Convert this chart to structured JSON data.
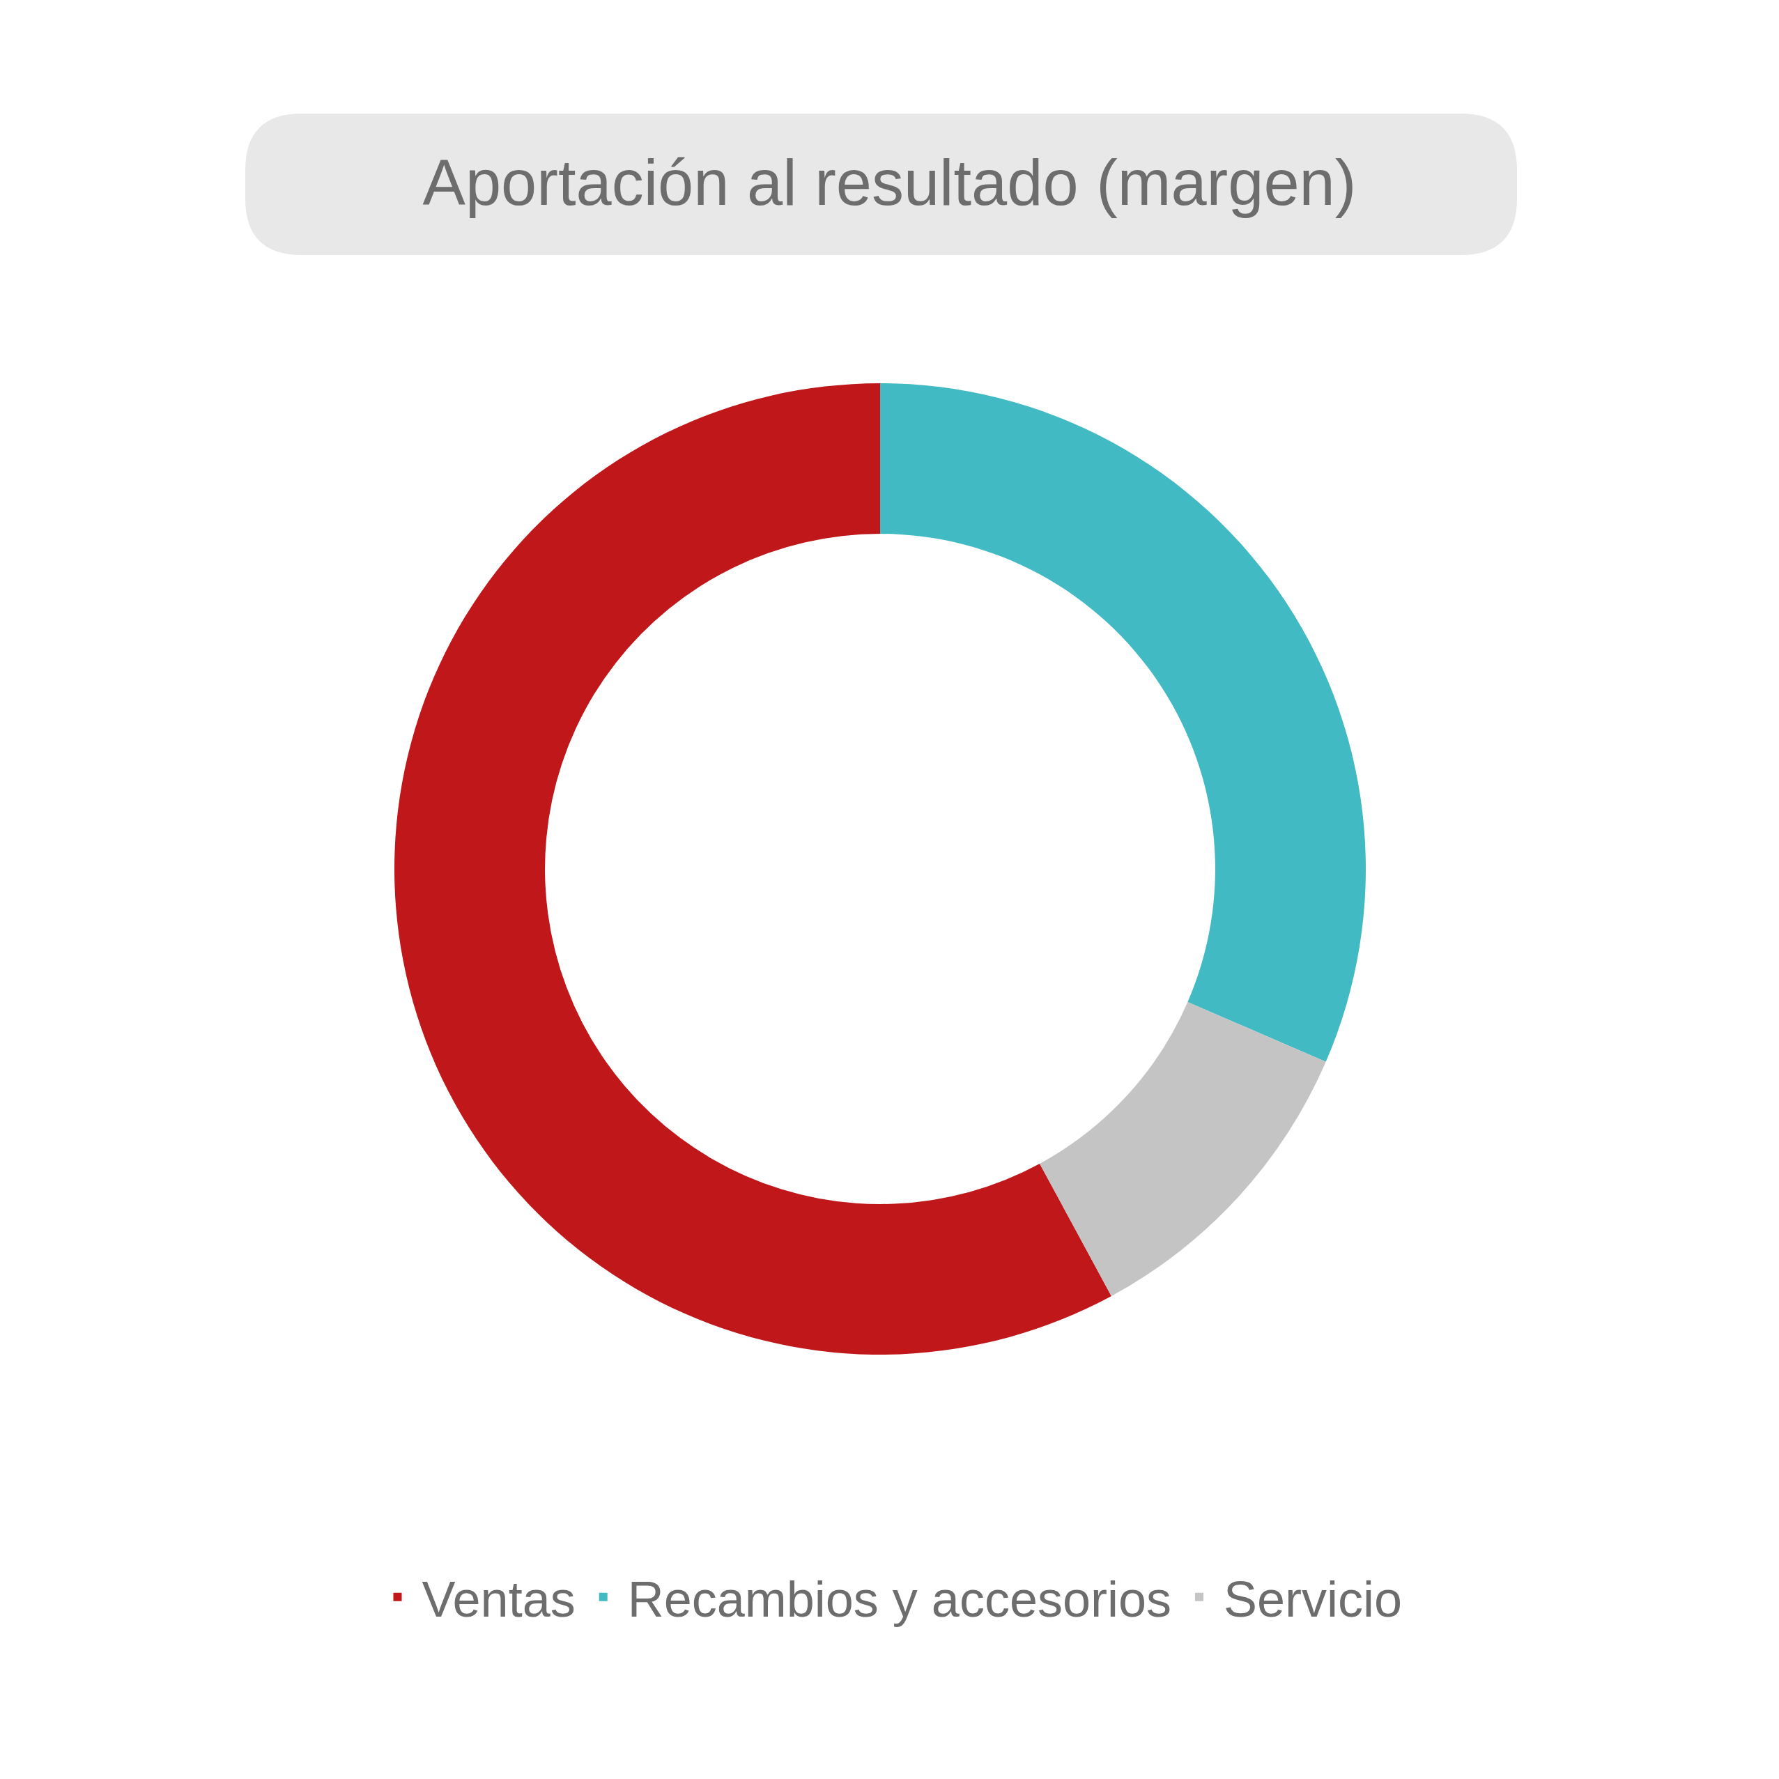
{
  "chart_data": {
    "type": "donut",
    "title": "Aportación al resultado (margen)",
    "categories": [
      "Ventas",
      "Recambios y accesorios",
      "Servicio"
    ],
    "values": [
      57.9,
      31.5,
      10.6
    ],
    "colors": [
      "#c0181a",
      "#42bac4",
      "#c4c4c4"
    ],
    "legend": "bottom"
  }
}
